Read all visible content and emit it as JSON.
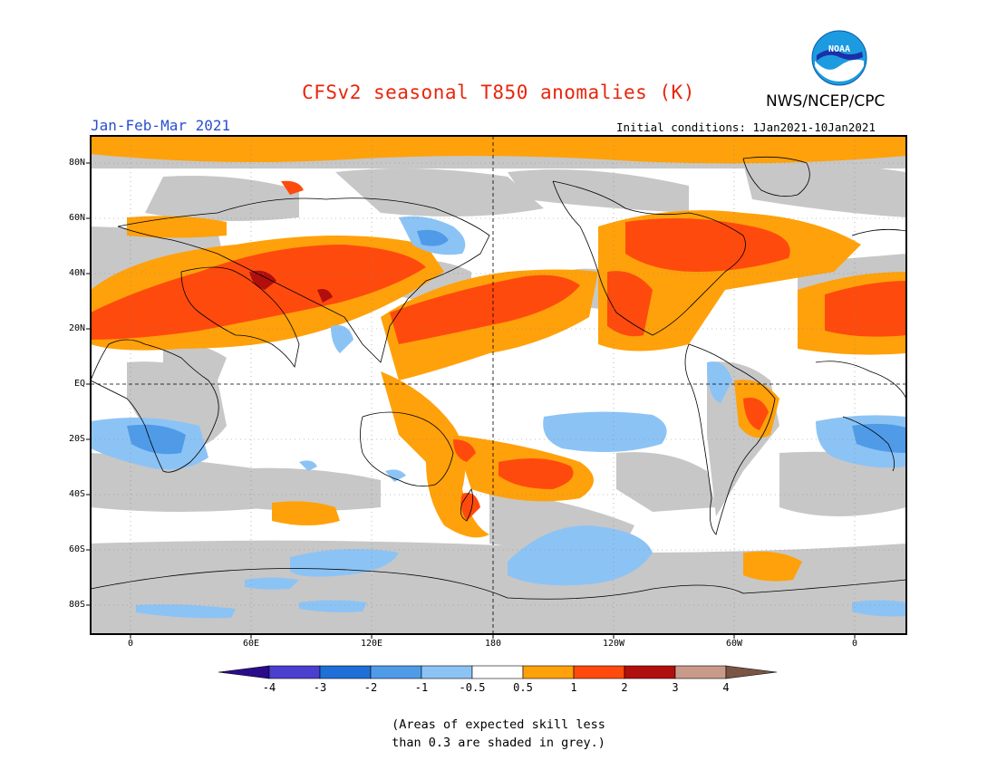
{
  "header": {
    "title": "CFSv2 seasonal T850 anomalies (K)",
    "agency": "NWS/NCEP/CPC",
    "season": "Jan-Feb-Mar 2021",
    "initial_conditions": "Initial conditions: 1Jan2021-10Jan2021",
    "logo_text": "NOAA"
  },
  "map": {
    "lat_labels": [
      "80N",
      "60N",
      "40N",
      "20N",
      "EQ",
      "20S",
      "40S",
      "60S",
      "80S"
    ],
    "lon_labels": [
      "0",
      "60E",
      "120E",
      "180",
      "120W",
      "60W",
      "0"
    ],
    "skill_shading": "grey"
  },
  "colorbar": {
    "labels": [
      "-4",
      "-3",
      "-2",
      "-1",
      "-0.5",
      "0.5",
      "1",
      "2",
      "3",
      "4"
    ],
    "colors": [
      "#2a0c8a",
      "#4b3fcf",
      "#1f6fd8",
      "#4f9be8",
      "#8cc3f5",
      "#ffffff",
      "#ffa10a",
      "#ff4a0d",
      "#b10e0e",
      "#c99a8a",
      "#7a5545"
    ]
  },
  "footnote": {
    "line1": "(Areas of expected skill less",
    "line2": "than 0.3 are shaded in grey.)"
  }
}
